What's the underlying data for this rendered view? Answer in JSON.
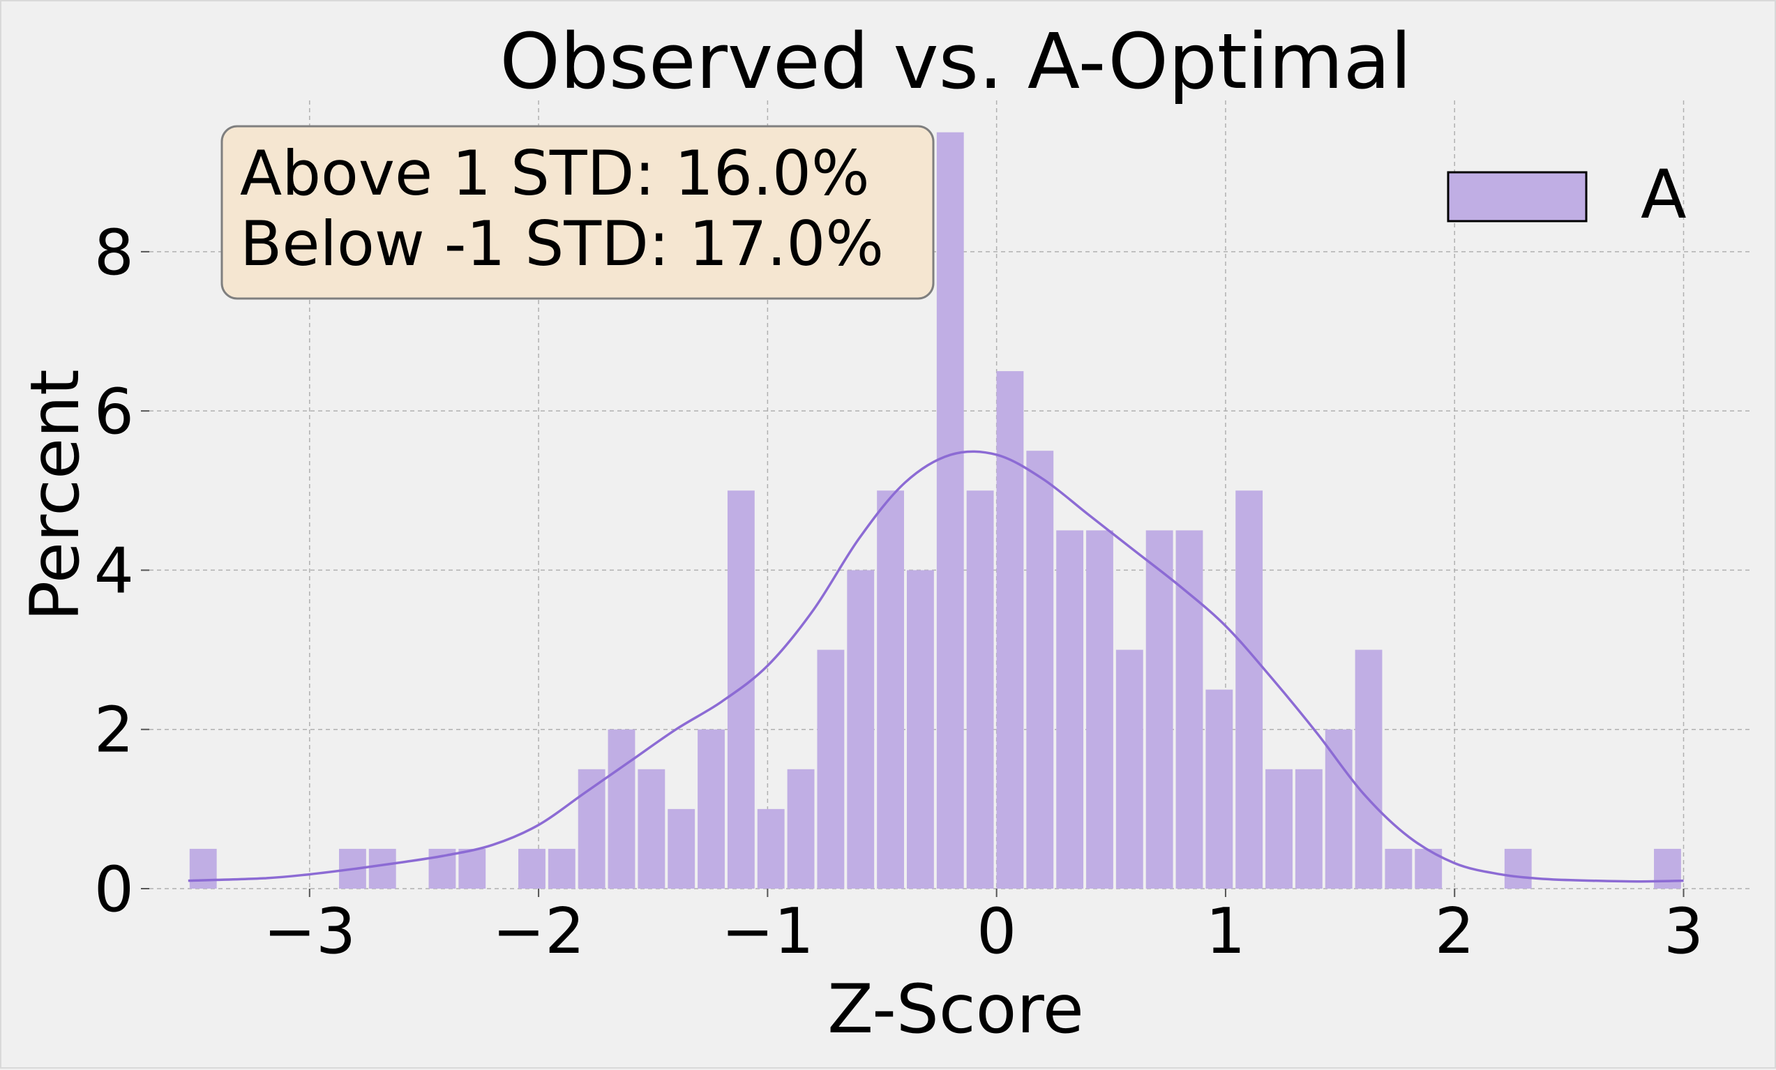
{
  "chart_data": {
    "type": "bar",
    "title": "Observed vs. A-Optimal",
    "xlabel": "Z-Score",
    "ylabel": "Percent",
    "xlim": [
      -3.7,
      3.3
    ],
    "ylim": [
      0,
      9.9
    ],
    "xticks": [
      -3,
      -2,
      -1,
      0,
      1,
      2,
      3
    ],
    "xtick_labels": [
      "−3",
      "−2",
      "−1",
      "0",
      "1",
      "2",
      "3"
    ],
    "yticks": [
      0,
      2,
      4,
      6,
      8
    ],
    "ytick_labels": [
      "0",
      "2",
      "4",
      "6",
      "8"
    ],
    "grid": true,
    "legend_position": "top-right",
    "bin_start": -3.53,
    "bin_width": 0.1305,
    "series": [
      {
        "name": "A",
        "color": "#c0aee4",
        "values": [
          0.5,
          0,
          0,
          0,
          0,
          0.5,
          0.5,
          0,
          0.5,
          0.5,
          0,
          0.5,
          0.5,
          1.5,
          2.0,
          1.5,
          1.0,
          2.0,
          5.0,
          1.0,
          1.5,
          3.0,
          4.0,
          5.0,
          4.0,
          9.5,
          5.0,
          6.5,
          5.5,
          4.5,
          4.5,
          3.0,
          4.5,
          4.5,
          2.5,
          5.0,
          1.5,
          1.5,
          2.0,
          3.0,
          0.5,
          0.5,
          0,
          0,
          0.5,
          0,
          0,
          0,
          0,
          0.5
        ]
      }
    ],
    "kde": {
      "color": "#8c6bd4",
      "x": [
        -3.53,
        -3.2,
        -3.0,
        -2.8,
        -2.6,
        -2.4,
        -2.2,
        -2.0,
        -1.8,
        -1.6,
        -1.4,
        -1.2,
        -1.0,
        -0.8,
        -0.6,
        -0.4,
        -0.2,
        0.0,
        0.2,
        0.4,
        0.6,
        0.8,
        1.0,
        1.2,
        1.4,
        1.6,
        1.8,
        2.0,
        2.2,
        2.4,
        2.6,
        2.8,
        3.0
      ],
      "y": [
        0.1,
        0.13,
        0.18,
        0.25,
        0.33,
        0.42,
        0.55,
        0.8,
        1.2,
        1.6,
        2.0,
        2.35,
        2.8,
        3.5,
        4.4,
        5.1,
        5.45,
        5.45,
        5.15,
        4.7,
        4.25,
        3.8,
        3.3,
        2.65,
        1.95,
        1.2,
        0.65,
        0.32,
        0.18,
        0.12,
        0.1,
        0.09,
        0.1
      ]
    },
    "annotation": {
      "lines": [
        "Above 1 STD: 16.0%",
        "Below -1 STD: 17.0%"
      ],
      "box_color": "#f5e6d1"
    }
  }
}
